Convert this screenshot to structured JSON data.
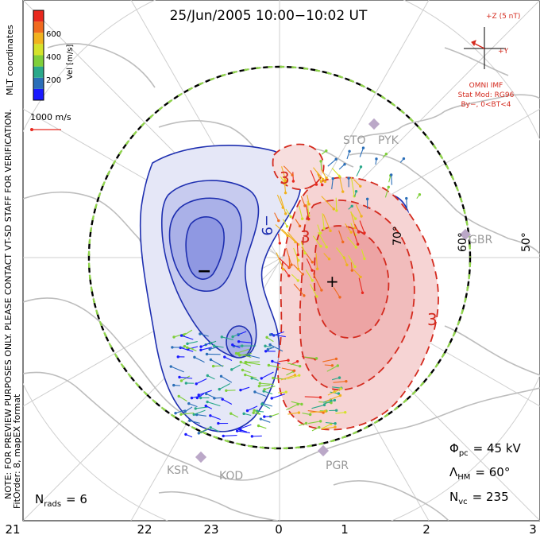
{
  "chart_data": {
    "type": "polar-convection-map",
    "title": "25/Jun/2005 10:00−10:02 UT",
    "coordinate_label": "MLT coordinates",
    "note_lines": [
      "NOTE: FOR PREVIEW PURPOSES ONLY. PLEASE CONTACT VT-SD STAFF FOR VERIFICATION.",
      "FitOrder: 8, mapEX format"
    ],
    "colorbar": {
      "label": "Vel [m/s]",
      "ticks": [
        "200",
        "400",
        "600"
      ],
      "colors": [
        "#1a1aff",
        "#2a6eb8",
        "#2aa88a",
        "#7fcf3a",
        "#d4e22a",
        "#f0b21e",
        "#f06a1e",
        "#e8281e"
      ]
    },
    "reference_vector": {
      "label": "1000 m/s"
    },
    "imf_clock": {
      "bz_label": "+Z (5 nT)",
      "by_label": "+Y",
      "source_label": "OMNI IMF",
      "model_label": "Stat Mod: RG96",
      "condition_label": "By−, 0<BT<4"
    },
    "mlt_ticks": [
      "21",
      "22",
      "23",
      "0",
      "1",
      "2",
      "3"
    ],
    "latitude_labels": [
      "70°",
      "60°",
      "50°"
    ],
    "radars": [
      "STO",
      "PYK",
      "GBR",
      "KSR",
      "KOD",
      "PGR"
    ],
    "potential_labels": {
      "negative": [
        "−9"
      ],
      "positive": [
        "3",
        "3",
        "3"
      ],
      "min_marker": "−",
      "max_marker": "+"
    },
    "stats": {
      "phi_symbol": "Φ",
      "phi_sub": "pc",
      "phi_value": "= 45 kV",
      "lambda_symbol": "Λ",
      "lambda_sub": "HM",
      "lambda_value": "= 60°",
      "nvc_symbol": "N",
      "nvc_sub": "vc",
      "nvc_value": "= 235",
      "nrads_symbol": "N",
      "nrads_sub": "rads",
      "nrads_value": "= 6"
    },
    "summary": {
      "cross_polar_cap_potential_kV": 45,
      "heppner_maynard_boundary_deg": 60,
      "vector_count": 235,
      "radar_count": 6
    }
  }
}
